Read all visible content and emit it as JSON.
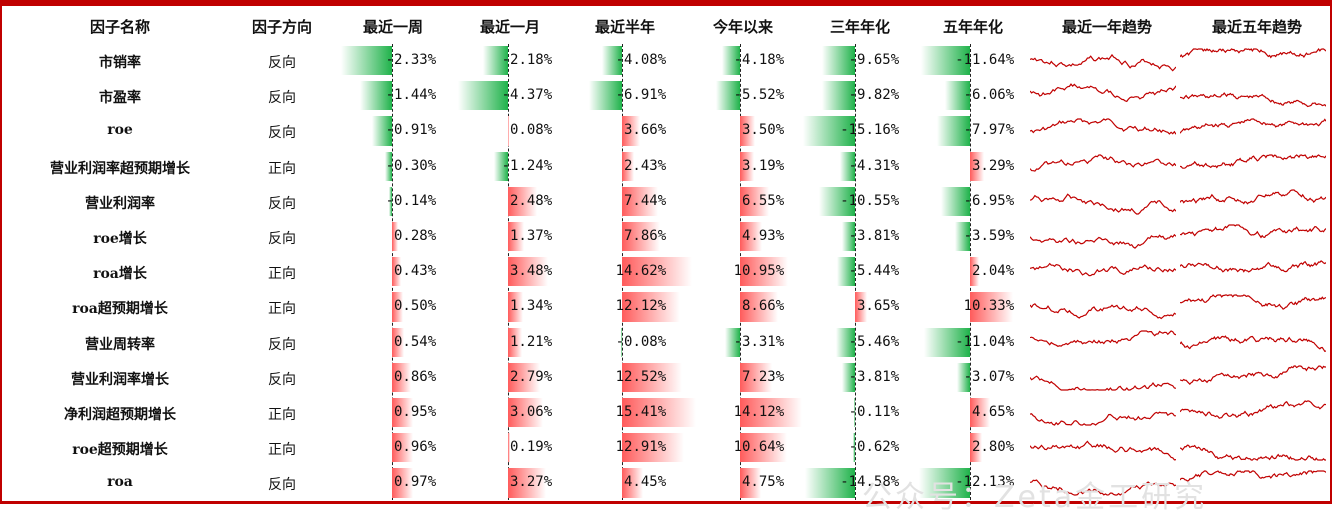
{
  "watermark": "公众号：Zeta金工研究",
  "columns": {
    "name": "因子名称",
    "direction": "因子方向",
    "periods": [
      "最近一周",
      "最近一月",
      "最近半年",
      "今年以来",
      "三年年化",
      "五年年化"
    ],
    "trend1y": "最近一年趋势",
    "trend5y": "最近五年趋势"
  },
  "colors": {
    "positive": "#ff5b5b",
    "negative": "#1fb24a",
    "trend_line": "#c00000",
    "frame": "#c00000"
  },
  "chart_data": {
    "type": "table",
    "rows": [
      {
        "name": "市销率",
        "direction": "反向",
        "values": [
          -2.33,
          -2.18,
          -4.08,
          -4.18,
          -9.65,
          -11.64
        ]
      },
      {
        "name": "市盈率",
        "direction": "反向",
        "values": [
          -1.44,
          -4.37,
          -6.91,
          -5.52,
          -9.82,
          -6.06
        ]
      },
      {
        "name": "roe",
        "direction": "反向",
        "values": [
          -0.91,
          0.08,
          3.66,
          3.5,
          -15.16,
          -7.97
        ]
      },
      {
        "name": "营业利润率超预期增长",
        "direction": "正向",
        "values": [
          -0.3,
          -1.24,
          2.43,
          3.19,
          -4.31,
          3.29
        ]
      },
      {
        "name": "营业利润率",
        "direction": "反向",
        "values": [
          -0.14,
          2.48,
          7.44,
          6.55,
          -10.55,
          -6.95
        ]
      },
      {
        "name": "roe增长",
        "direction": "反向",
        "values": [
          0.28,
          1.37,
          7.86,
          4.93,
          -3.81,
          -3.59
        ]
      },
      {
        "name": "roa增长",
        "direction": "正向",
        "values": [
          0.43,
          3.48,
          14.62,
          10.95,
          -5.44,
          2.04
        ]
      },
      {
        "name": "roa超预期增长",
        "direction": "正向",
        "values": [
          0.5,
          1.34,
          12.12,
          8.66,
          3.65,
          10.33
        ]
      },
      {
        "name": "营业周转率",
        "direction": "反向",
        "values": [
          0.54,
          1.21,
          -0.08,
          -3.31,
          -5.46,
          -11.04
        ]
      },
      {
        "name": "营业利润率增长",
        "direction": "反向",
        "values": [
          0.86,
          2.79,
          12.52,
          7.23,
          -3.81,
          -3.07
        ]
      },
      {
        "name": "净利润超预期增长",
        "direction": "正向",
        "values": [
          0.95,
          3.06,
          15.41,
          14.12,
          -0.11,
          4.65
        ]
      },
      {
        "name": "roe超预期增长",
        "direction": "正向",
        "values": [
          0.96,
          0.19,
          12.91,
          10.64,
          -0.62,
          2.8
        ]
      },
      {
        "name": "roa",
        "direction": "反向",
        "values": [
          0.97,
          3.27,
          4.45,
          4.75,
          -14.58,
          -12.13
        ]
      }
    ]
  }
}
